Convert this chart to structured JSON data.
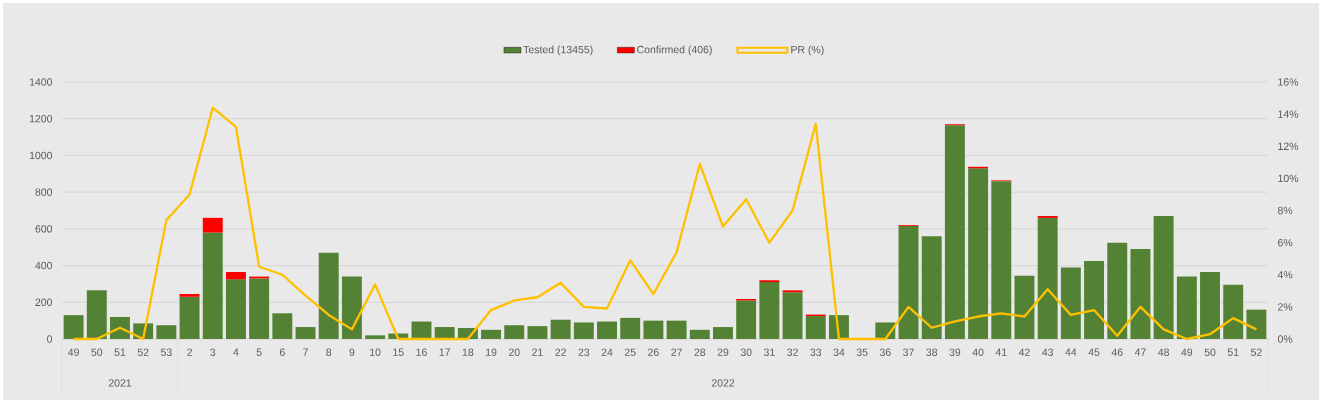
{
  "chart_data": {
    "type": "bar",
    "stacked": true,
    "categories": [
      "49",
      "50",
      "51",
      "52",
      "53",
      "2",
      "3",
      "4",
      "5",
      "6",
      "7",
      "8",
      "9",
      "10",
      "15",
      "16",
      "17",
      "18",
      "19",
      "20",
      "21",
      "22",
      "23",
      "24",
      "25",
      "26",
      "27",
      "28",
      "29",
      "30",
      "31",
      "32",
      "33",
      "34",
      "35",
      "36",
      "37",
      "38",
      "39",
      "40",
      "41",
      "42",
      "43",
      "44",
      "45",
      "46",
      "47",
      "48",
      "49",
      "50",
      "51",
      "52"
    ],
    "series": [
      {
        "name": "Tested (13455)",
        "color": "#548235",
        "values": [
          130,
          265,
          120,
          85,
          75,
          230,
          580,
          325,
          330,
          140,
          65,
          470,
          340,
          20,
          30,
          95,
          65,
          60,
          50,
          75,
          70,
          105,
          90,
          95,
          115,
          100,
          100,
          50,
          65,
          210,
          310,
          255,
          125,
          130,
          null,
          90,
          615,
          560,
          1165,
          930,
          860,
          345,
          660,
          390,
          425,
          525,
          490,
          670,
          340,
          365,
          295,
          160
        ]
      },
      {
        "name": "Confirmed (406)",
        "color": "#ff0000",
        "values": [
          null,
          null,
          null,
          null,
          null,
          15,
          80,
          40,
          10,
          null,
          null,
          null,
          null,
          null,
          null,
          null,
          null,
          null,
          null,
          null,
          null,
          null,
          null,
          null,
          null,
          null,
          null,
          null,
          null,
          8,
          10,
          10,
          8,
          null,
          null,
          null,
          5,
          null,
          5,
          8,
          4,
          null,
          10,
          null,
          null,
          null,
          null,
          null,
          null,
          null,
          null,
          null
        ]
      },
      {
        "name": "PR (%)",
        "type": "line",
        "axis": "y2",
        "color": "#ffc000",
        "values": [
          0,
          0,
          0.7,
          0,
          7.4,
          9.0,
          14.4,
          13.2,
          4.5,
          4.0,
          2.7,
          1.5,
          0.6,
          3.4,
          0,
          0,
          0,
          0,
          1.8,
          2.4,
          2.6,
          3.5,
          2.0,
          1.9,
          4.9,
          2.8,
          5.4,
          10.9,
          7.0,
          8.7,
          6.0,
          8.0,
          13.4,
          0,
          0,
          0,
          2.0,
          0.7,
          1.1,
          1.4,
          1.6,
          1.4,
          3.1,
          1.5,
          1.8,
          0.2,
          2.0,
          0.6,
          0,
          0.3,
          1.3,
          0.6
        ]
      }
    ],
    "ylim": [
      0,
      1400
    ],
    "yticks": [
      0,
      200,
      400,
      600,
      800,
      1000,
      1200,
      1400
    ],
    "y2lim": [
      0,
      16
    ],
    "y2ticks": [
      {
        "value": 0,
        "label": "0%"
      },
      {
        "value": 2,
        "label": "2%"
      },
      {
        "value": 4,
        "label": "4%"
      },
      {
        "value": 6,
        "label": "6%"
      },
      {
        "value": 8,
        "label": "8%"
      },
      {
        "value": 10,
        "label": "10%"
      },
      {
        "value": 12,
        "label": "12%"
      },
      {
        "value": 14,
        "label": "14%"
      },
      {
        "value": 16,
        "label": "16%"
      }
    ],
    "grid": "y",
    "legend": "top",
    "marker": "none",
    "line_style": "solid",
    "annotations": [
      "2021",
      "2022"
    ]
  }
}
